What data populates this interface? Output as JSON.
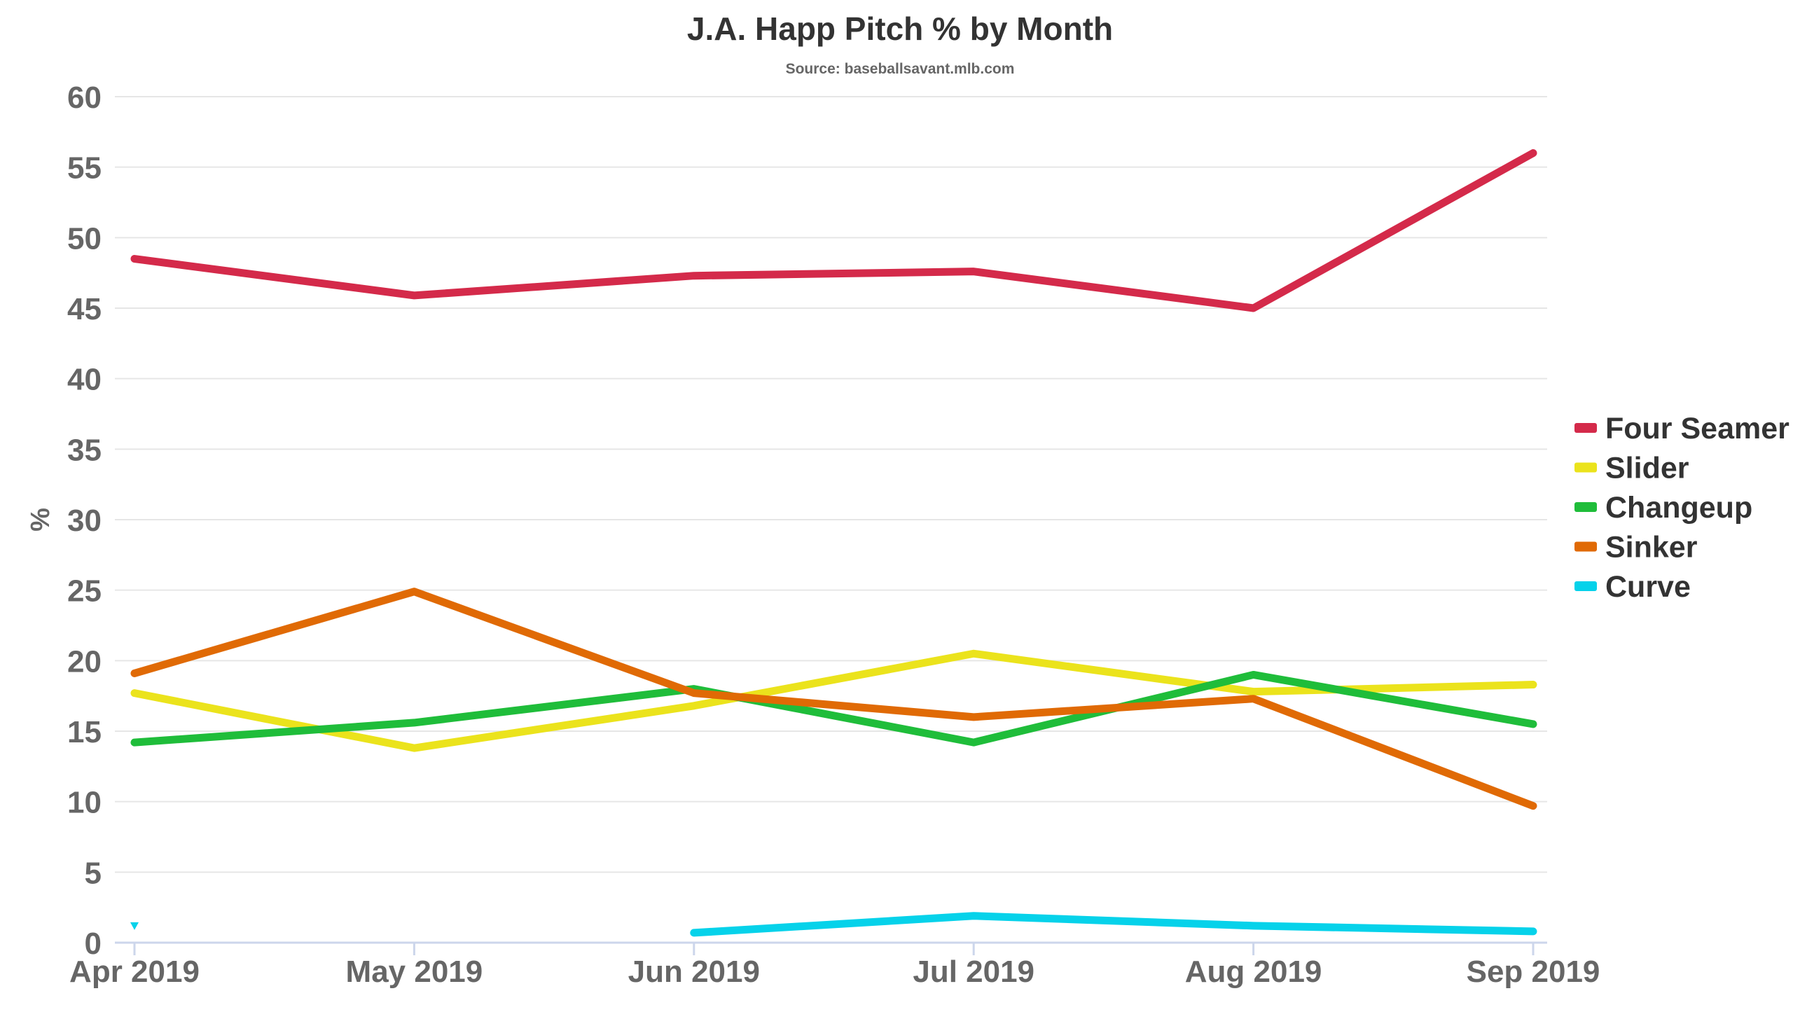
{
  "chart_data": {
    "type": "line",
    "title": "J.A. Happ Pitch % by Month",
    "subtitle": "Source: baseballsavant.mlb.com",
    "xlabel": "",
    "ylabel": "%",
    "ylim": [
      0,
      60
    ],
    "yticks": [
      0,
      5,
      10,
      15,
      20,
      25,
      30,
      35,
      40,
      45,
      50,
      55,
      60
    ],
    "grid": true,
    "legend_position": "right",
    "categories": [
      "Apr 2019",
      "May 2019",
      "Jun 2019",
      "Jul 2019",
      "Aug 2019",
      "Sep 2019"
    ],
    "series": [
      {
        "name": "Four Seamer",
        "color": "#d42a4a",
        "values": [
          48.5,
          45.9,
          47.3,
          47.6,
          45.0,
          56.0
        ]
      },
      {
        "name": "Slider",
        "color": "#ebe31c",
        "values": [
          17.7,
          13.8,
          16.8,
          20.5,
          17.8,
          18.3
        ]
      },
      {
        "name": "Changeup",
        "color": "#1fbd3a",
        "values": [
          14.2,
          15.6,
          18.0,
          14.2,
          19.0,
          15.5
        ]
      },
      {
        "name": "Sinker",
        "color": "#e06a05",
        "values": [
          19.1,
          24.9,
          17.7,
          16.0,
          17.3,
          9.7
        ]
      },
      {
        "name": "Curve",
        "color": "#06d2ea",
        "values": [
          1.2,
          null,
          0.7,
          1.9,
          1.2,
          0.8
        ]
      }
    ]
  }
}
